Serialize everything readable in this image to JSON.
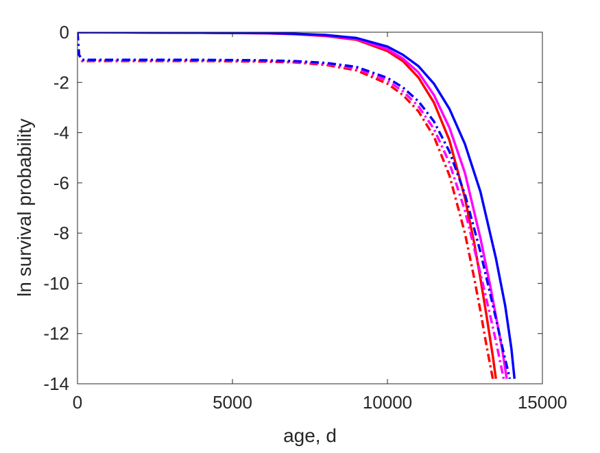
{
  "chart_data": {
    "type": "line",
    "title": "",
    "xlabel": "age, d",
    "ylabel": "ln survival probability",
    "xlim": [
      0,
      15000
    ],
    "ylim": [
      -14,
      0
    ],
    "xticks": [
      0,
      5000,
      10000,
      15000
    ],
    "yticks": [
      0,
      -2,
      -4,
      -6,
      -8,
      -10,
      -12,
      -14
    ],
    "grid": false,
    "legend": "none",
    "series": [
      {
        "style": "solid",
        "color": "#ff0000",
        "x": [
          0,
          2000,
          4000,
          6000,
          7000,
          8000,
          9000,
          10000,
          10500,
          11000,
          11500,
          12000,
          12500,
          12800,
          13000,
          13200,
          13400,
          13500
        ],
        "y": [
          0,
          -0.01,
          -0.02,
          -0.04,
          -0.08,
          -0.15,
          -0.3,
          -0.75,
          -1.15,
          -1.8,
          -2.8,
          -4.3,
          -6.6,
          -8.4,
          -9.8,
          -11.3,
          -12.9,
          -13.8
        ]
      },
      {
        "style": "solid",
        "color": "#ff00ff",
        "x": [
          0,
          2000,
          4000,
          6000,
          7000,
          8000,
          9000,
          10000,
          10500,
          11000,
          11500,
          12000,
          12500,
          13000,
          13300,
          13500,
          13700,
          13850
        ],
        "y": [
          0,
          -0.01,
          -0.02,
          -0.04,
          -0.07,
          -0.13,
          -0.27,
          -0.68,
          -1.05,
          -1.6,
          -2.5,
          -3.8,
          -5.6,
          -8.2,
          -10.0,
          -11.3,
          -12.6,
          -13.8
        ]
      },
      {
        "style": "solid",
        "color": "#0000ff",
        "x": [
          0,
          2000,
          4000,
          6000,
          7000,
          8000,
          9000,
          10000,
          10500,
          11000,
          11500,
          12000,
          12500,
          13000,
          13500,
          13800,
          14000,
          14100
        ],
        "y": [
          0,
          -0.01,
          -0.02,
          -0.03,
          -0.06,
          -0.11,
          -0.23,
          -0.57,
          -0.9,
          -1.35,
          -2.05,
          -3.05,
          -4.45,
          -6.35,
          -9.0,
          -10.9,
          -12.6,
          -13.8
        ]
      },
      {
        "style": "dashdot",
        "color": "#ff0000",
        "x": [
          0,
          50,
          150,
          2000,
          4000,
          6000,
          7000,
          8000,
          9000,
          10000,
          10500,
          11000,
          11500,
          12000,
          12500,
          12800,
          13000,
          13200,
          13400
        ],
        "y": [
          0,
          -0.9,
          -1.15,
          -1.15,
          -1.15,
          -1.17,
          -1.2,
          -1.3,
          -1.52,
          -2.05,
          -2.5,
          -3.15,
          -4.15,
          -5.7,
          -8.0,
          -9.8,
          -11.1,
          -12.5,
          -13.8
        ]
      },
      {
        "style": "dashdot",
        "color": "#ff00ff",
        "x": [
          0,
          50,
          150,
          2000,
          4000,
          6000,
          7000,
          8000,
          9000,
          10000,
          10500,
          11000,
          11500,
          12000,
          12500,
          13000,
          13300,
          13500,
          13750
        ],
        "y": [
          0,
          -0.9,
          -1.12,
          -1.12,
          -1.12,
          -1.14,
          -1.17,
          -1.26,
          -1.45,
          -1.93,
          -2.35,
          -2.95,
          -3.85,
          -5.2,
          -7.1,
          -9.6,
          -11.2,
          -12.3,
          -13.8
        ]
      },
      {
        "style": "dashdot",
        "color": "#0000ff",
        "x": [
          0,
          50,
          150,
          2000,
          4000,
          6000,
          7000,
          8000,
          9000,
          10000,
          10500,
          11000,
          11500,
          12000,
          12500,
          13000,
          13500,
          13700,
          13950
        ],
        "y": [
          0,
          -0.9,
          -1.1,
          -1.1,
          -1.1,
          -1.12,
          -1.15,
          -1.22,
          -1.38,
          -1.82,
          -2.2,
          -2.75,
          -3.55,
          -4.75,
          -6.45,
          -8.75,
          -11.4,
          -12.5,
          -13.8
        ]
      }
    ]
  }
}
